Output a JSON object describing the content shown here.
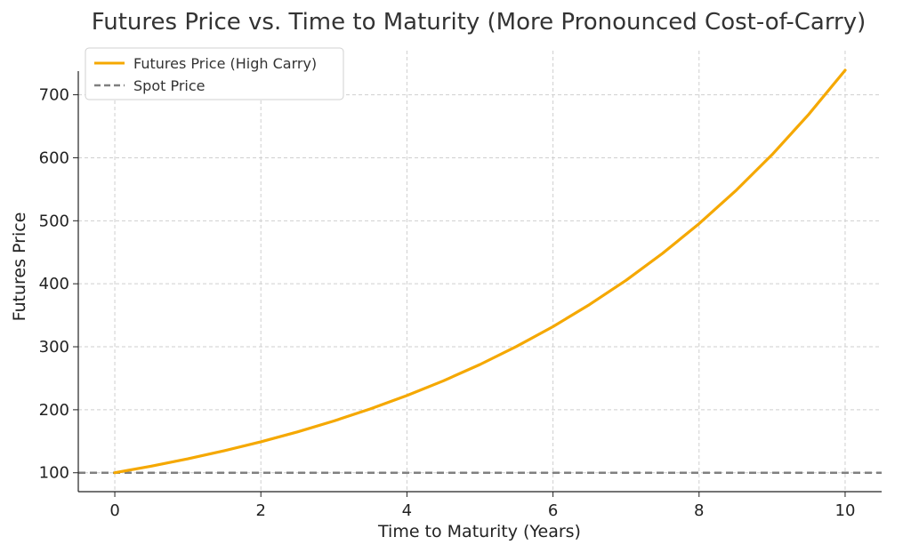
{
  "chart_data": {
    "type": "line",
    "title": "Futures Price vs. Time to Maturity (More Pronounced Cost-of-Carry)",
    "xlabel": "Time to Maturity (Years)",
    "ylabel": "Futures Price",
    "xlim": [
      -0.5,
      10.5
    ],
    "ylim": [
      70,
      770
    ],
    "xticks": [
      0,
      2,
      4,
      6,
      8,
      10
    ],
    "yticks": [
      100,
      200,
      300,
      400,
      500,
      600,
      700
    ],
    "grid": true,
    "legend_position": "top-left",
    "series": [
      {
        "name": "Futures Price (High Carry)",
        "color": "#F5A800",
        "style": "solid",
        "x": [
          0,
          0.5,
          1,
          1.5,
          2,
          2.5,
          3,
          3.5,
          4,
          4.5,
          5,
          5.5,
          6,
          6.5,
          7,
          7.5,
          8,
          8.5,
          9,
          9.5,
          10
        ],
        "y": [
          100,
          110.5,
          122.1,
          135.0,
          149.2,
          164.9,
          182.2,
          201.4,
          222.6,
          246.0,
          271.8,
          300.4,
          332.0,
          366.9,
          405.5,
          448.2,
          495.3,
          547.4,
          605.0,
          668.6,
          738.9
        ]
      },
      {
        "name": "Spot Price",
        "color": "#808080",
        "style": "dashed",
        "x": [
          -0.5,
          10.5
        ],
        "y": [
          100,
          100
        ]
      }
    ]
  }
}
